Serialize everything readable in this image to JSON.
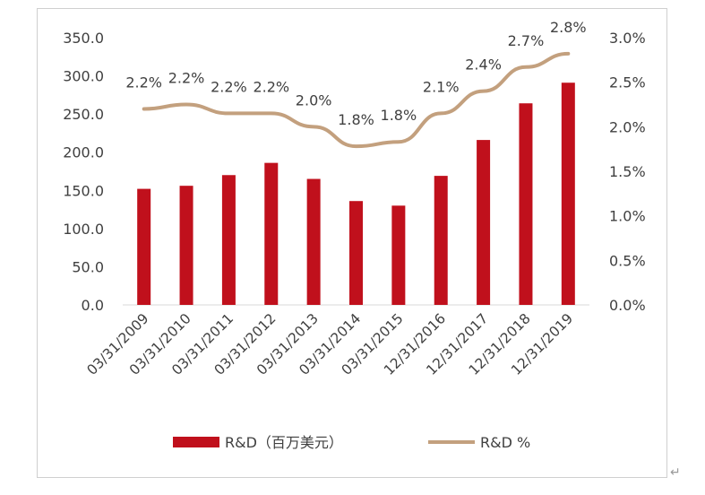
{
  "chart_data": {
    "type": "bar+line",
    "categories": [
      "03/31/2009",
      "03/31/2010",
      "03/31/2011",
      "03/31/2012",
      "03/31/2013",
      "03/31/2014",
      "03/31/2015",
      "12/31/2016",
      "12/31/2017",
      "12/31/2018",
      "12/31/2019"
    ],
    "series": [
      {
        "name": "R&D（百万美元）",
        "type": "bar",
        "axis": "left",
        "color": "#c0101c",
        "values": [
          152,
          156,
          170,
          186,
          165,
          136,
          130,
          169,
          216,
          264,
          291
        ]
      },
      {
        "name": "R&D %",
        "type": "line",
        "axis": "right",
        "color": "#c3a07e",
        "values": [
          2.2,
          2.25,
          2.15,
          2.15,
          2.0,
          1.78,
          1.83,
          2.15,
          2.4,
          2.67,
          2.82
        ],
        "labels": [
          "2.2%",
          "2.2%",
          "2.2%",
          "2.2%",
          "2.0%",
          "1.8%",
          "1.8%",
          "2.1%",
          "2.4%",
          "2.7%",
          "2.8%"
        ]
      }
    ],
    "left_axis": {
      "ylim": [
        0,
        350
      ],
      "ticks": [
        "0.0",
        "50.0",
        "100.0",
        "150.0",
        "200.0",
        "250.0",
        "300.0",
        "350.0"
      ]
    },
    "right_axis": {
      "ylim": [
        0,
        3.0
      ],
      "ticks": [
        "0.0%",
        "0.5%",
        "1.0%",
        "1.5%",
        "2.0%",
        "2.5%",
        "3.0%"
      ]
    },
    "title": "",
    "grid": false,
    "legend_position": "bottom"
  },
  "return_mark": "↵"
}
